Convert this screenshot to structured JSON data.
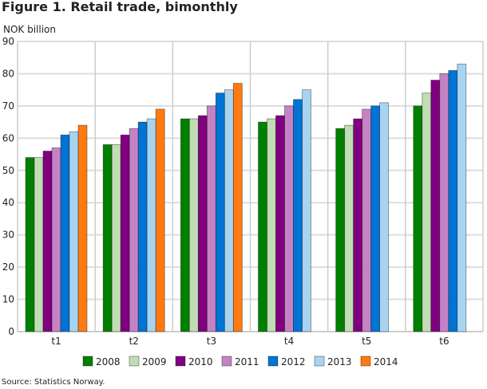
{
  "chart_data": {
    "type": "bar",
    "title": "Figure 1. Retail trade, bimonthly",
    "ylabel": "NOK billion",
    "source": "Source: Statistics Norway.",
    "categories": [
      "t1",
      "t2",
      "t3",
      "t4",
      "t5",
      "t6"
    ],
    "ylim": [
      0,
      90
    ],
    "yticks": [
      0,
      10,
      20,
      30,
      40,
      50,
      60,
      70,
      80,
      90
    ],
    "grid": true,
    "legend": "bottom",
    "series": [
      {
        "name": "2008",
        "color": "#008000",
        "values": [
          54,
          58,
          66,
          65,
          63,
          70
        ]
      },
      {
        "name": "2009",
        "color": "#c0ddb4",
        "values": [
          54,
          58,
          66,
          66,
          64,
          74
        ]
      },
      {
        "name": "2010",
        "color": "#800080",
        "values": [
          56,
          61,
          67,
          67,
          66,
          78
        ]
      },
      {
        "name": "2011",
        "color": "#c583c5",
        "values": [
          57,
          63,
          70,
          70,
          69,
          80
        ]
      },
      {
        "name": "2012",
        "color": "#0073d4",
        "values": [
          61,
          65,
          74,
          72,
          70,
          81
        ]
      },
      {
        "name": "2013",
        "color": "#a8d4f2",
        "values": [
          62,
          66,
          75,
          75,
          71,
          83
        ]
      },
      {
        "name": "2014",
        "color": "#ff7a10",
        "values": [
          64,
          69,
          77,
          null,
          null,
          null
        ]
      }
    ]
  }
}
